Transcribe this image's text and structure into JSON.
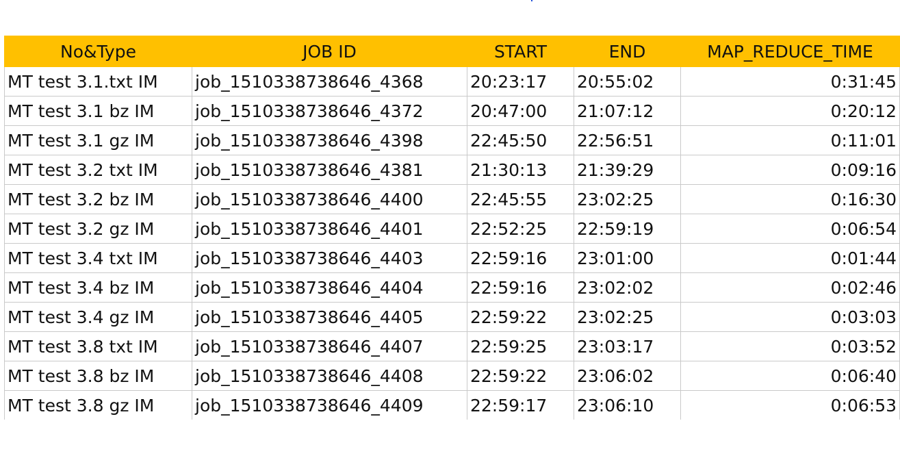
{
  "colors": {
    "header_fill": "#ffc000",
    "grid_line": "#c9c9c9",
    "text": "#111111",
    "corner_dot": "#1f4fd8"
  },
  "table": {
    "headers": [
      "No&Type",
      "JOB ID",
      "START",
      "END",
      "MAP_REDUCE_TIME"
    ],
    "rows": [
      [
        "MT test 3.1.txt IM",
        "job_1510338738646_4368",
        "20:23:17",
        "20:55:02",
        "0:31:45"
      ],
      [
        "MT test 3.1 bz IM",
        "job_1510338738646_4372",
        "20:47:00",
        "21:07:12",
        "0:20:12"
      ],
      [
        "MT test 3.1 gz IM",
        "job_1510338738646_4398",
        "22:45:50",
        "22:56:51",
        "0:11:01"
      ],
      [
        "MT test 3.2 txt IM",
        "job_1510338738646_4381",
        "21:30:13",
        "21:39:29",
        "0:09:16"
      ],
      [
        "MT test 3.2 bz IM",
        "job_1510338738646_4400",
        "22:45:55",
        "23:02:25",
        "0:16:30"
      ],
      [
        "MT test 3.2 gz IM",
        "job_1510338738646_4401",
        "22:52:25",
        "22:59:19",
        "0:06:54"
      ],
      [
        "MT test 3.4 txt IM",
        "job_1510338738646_4403",
        "22:59:16",
        "23:01:00",
        "0:01:44"
      ],
      [
        "MT test 3.4 bz IM",
        "job_1510338738646_4404",
        "22:59:16",
        "23:02:02",
        "0:02:46"
      ],
      [
        "MT test 3.4 gz IM",
        "job_1510338738646_4405",
        "22:59:22",
        "23:02:25",
        "0:03:03"
      ],
      [
        "MT test 3.8 txt IM",
        "job_1510338738646_4407",
        "22:59:25",
        "23:03:17",
        "0:03:52"
      ],
      [
        "MT test 3.8 bz IM",
        "job_1510338738646_4408",
        "22:59:22",
        "23:06:02",
        "0:06:40"
      ],
      [
        "MT test 3.8 gz IM",
        "job_1510338738646_4409",
        "22:59:17",
        "23:06:10",
        "0:06:53"
      ]
    ]
  }
}
